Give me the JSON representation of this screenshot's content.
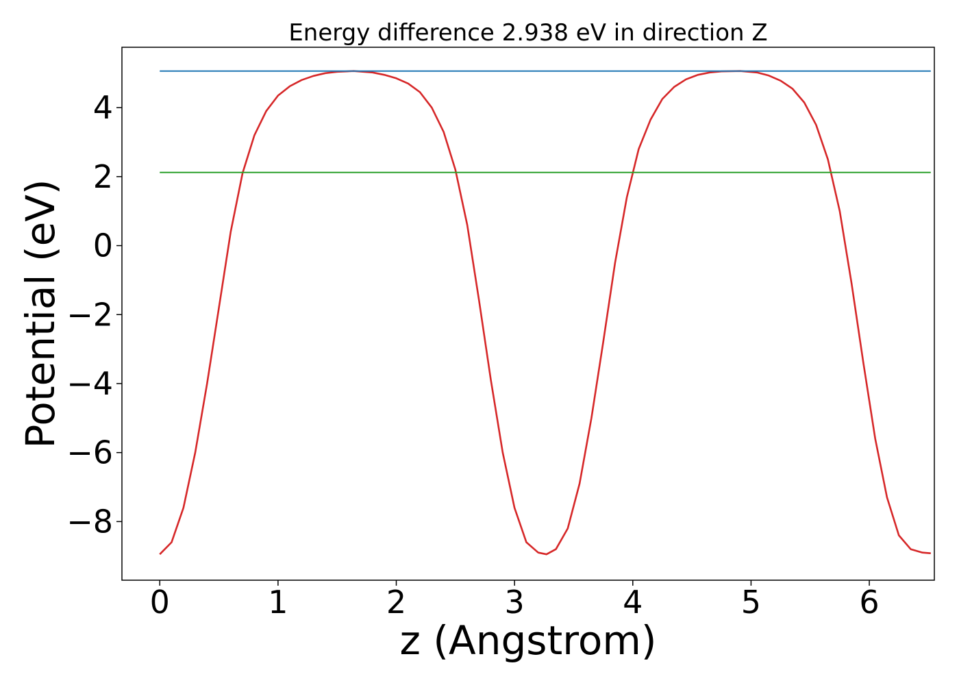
{
  "chart_data": {
    "type": "line",
    "title": "Energy difference 2.938 eV in direction Z",
    "xlabel": "z (Angstrom)",
    "ylabel": "Potential (eV)",
    "xlim": [
      -0.32,
      6.55
    ],
    "ylim": [
      -9.7,
      5.75
    ],
    "xticks": [
      0,
      1,
      2,
      3,
      4,
      5,
      6
    ],
    "yticks": [
      -8,
      -6,
      -4,
      -2,
      0,
      2,
      4
    ],
    "ytick_labels": [
      "−8",
      "−6",
      "−4",
      "−2",
      "0",
      "2",
      "4"
    ],
    "grid": false,
    "legend": "none",
    "series": [
      {
        "color": "#d62728",
        "x": [
          0.0,
          0.1,
          0.2,
          0.3,
          0.4,
          0.5,
          0.6,
          0.7,
          0.8,
          0.9,
          1.0,
          1.1,
          1.2,
          1.3,
          1.4,
          1.5,
          1.64,
          1.8,
          1.9,
          2.0,
          2.1,
          2.2,
          2.3,
          2.4,
          2.5,
          2.6,
          2.7,
          2.8,
          2.9,
          3.0,
          3.1,
          3.2,
          3.27,
          3.35,
          3.45,
          3.55,
          3.65,
          3.75,
          3.85,
          3.95,
          4.05,
          4.15,
          4.25,
          4.35,
          4.45,
          4.55,
          4.65,
          4.75,
          4.91,
          5.05,
          5.15,
          5.25,
          5.35,
          5.45,
          5.55,
          5.65,
          5.75,
          5.85,
          5.95,
          6.05,
          6.15,
          6.25,
          6.35,
          6.45,
          6.52
        ],
        "y": [
          -8.95,
          -8.6,
          -7.6,
          -6.0,
          -4.0,
          -1.8,
          0.4,
          2.1,
          3.2,
          3.9,
          4.35,
          4.62,
          4.8,
          4.92,
          5.0,
          5.04,
          5.06,
          5.02,
          4.95,
          4.85,
          4.7,
          4.45,
          4.0,
          3.3,
          2.2,
          0.6,
          -1.6,
          -3.9,
          -6.0,
          -7.6,
          -8.6,
          -8.9,
          -8.95,
          -8.8,
          -8.2,
          -6.9,
          -5.0,
          -2.8,
          -0.5,
          1.4,
          2.8,
          3.65,
          4.25,
          4.6,
          4.82,
          4.95,
          5.02,
          5.05,
          5.06,
          5.02,
          4.93,
          4.78,
          4.55,
          4.15,
          3.5,
          2.5,
          1.0,
          -1.1,
          -3.4,
          -5.6,
          -7.3,
          -8.4,
          -8.8,
          -8.9,
          -8.92
        ]
      },
      {
        "color": "#1f77b4",
        "x": [
          0.0,
          6.52
        ],
        "y": [
          5.06,
          5.06
        ]
      },
      {
        "color": "#2ca02c",
        "x": [
          0.0,
          6.52
        ],
        "y": [
          2.12,
          2.12
        ]
      }
    ]
  }
}
